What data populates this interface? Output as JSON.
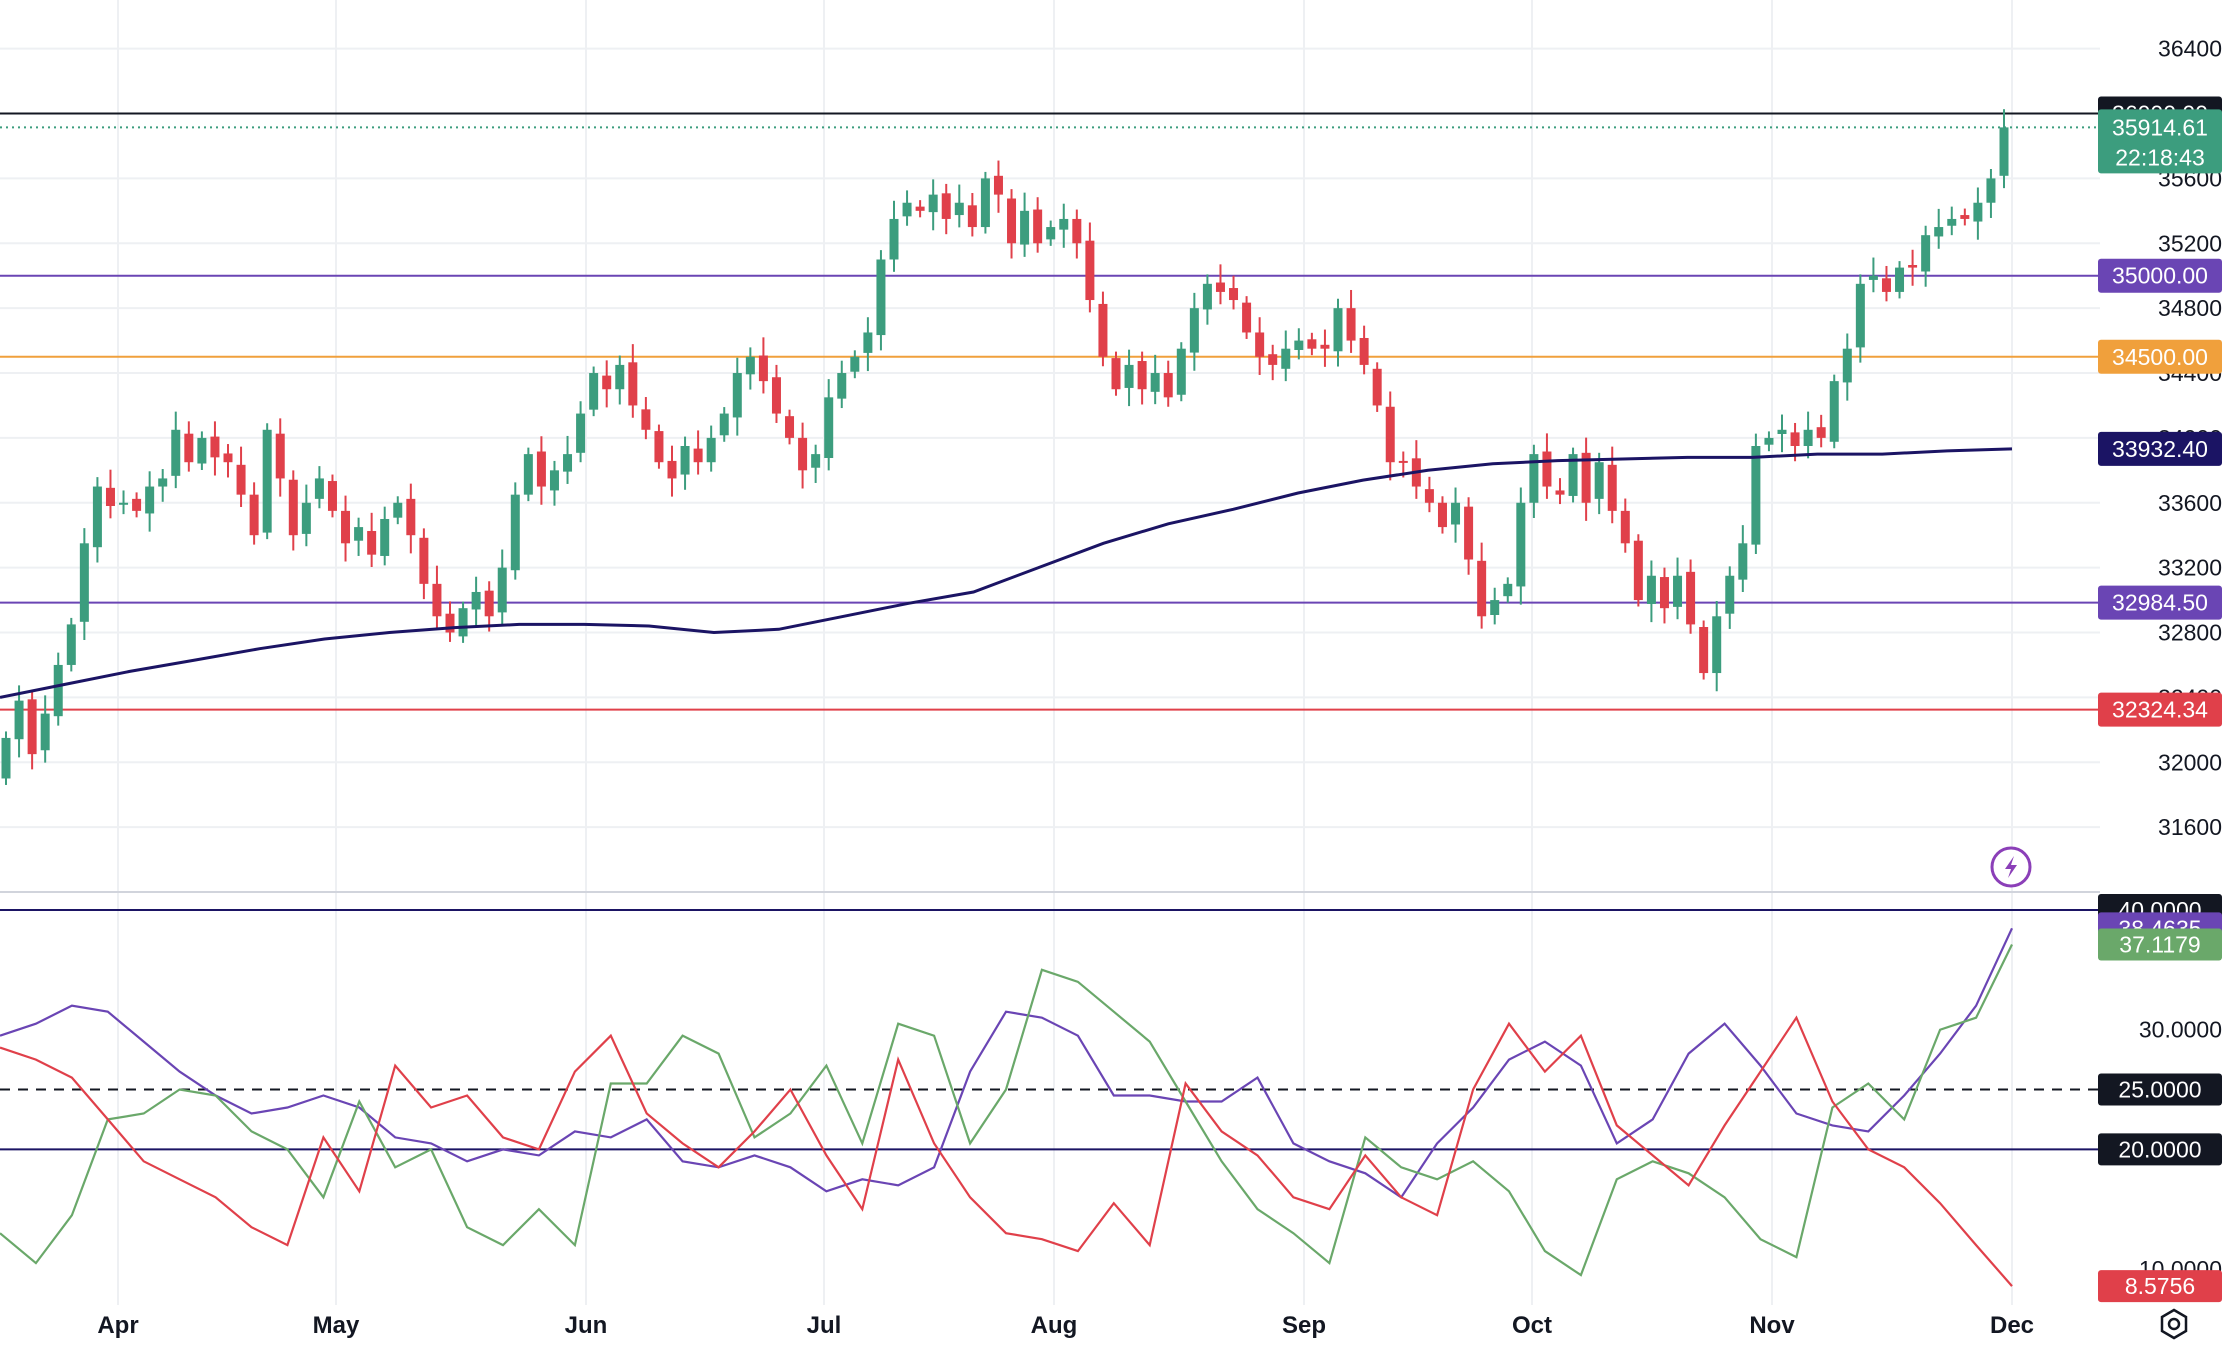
{
  "chart_data": [
    {
      "type": "candlestick",
      "title": "",
      "x_months": [
        "Apr",
        "May",
        "Jun",
        "Jul",
        "Aug",
        "Sep",
        "Oct",
        "Nov",
        "Dec"
      ],
      "y_ticks": [
        31600,
        32000,
        32400,
        32800,
        33200,
        33600,
        34000,
        34400,
        34800,
        35200,
        35600,
        36000,
        36400
      ],
      "ylim": [
        31200,
        36700
      ],
      "grid": true,
      "candle_up_color": "#3c9d7e",
      "candle_down_color": "#e0404a",
      "sma_color": "#1b1464",
      "closes": [
        32150,
        32380,
        32050,
        32300,
        32600,
        32850,
        33350,
        33700,
        33580,
        33600,
        33550,
        33700,
        33750,
        34050,
        33850,
        34000,
        33880,
        33850,
        33650,
        33400,
        34050,
        33750,
        33400,
        33600,
        33750,
        33550,
        33350,
        33450,
        33280,
        33500,
        33600,
        33400,
        33100,
        32900,
        32800,
        32950,
        33050,
        32900,
        33200,
        33650,
        33900,
        33700,
        33800,
        33900,
        34150,
        34400,
        34300,
        34450,
        34200,
        34050,
        33850,
        33750,
        33950,
        33850,
        34000,
        34150,
        34400,
        34500,
        34350,
        34150,
        34000,
        33800,
        33900,
        34250,
        34400,
        34500,
        34650,
        35100,
        35350,
        35450,
        35400,
        35500,
        35350,
        35450,
        35300,
        35600,
        35500,
        35200,
        35400,
        35200,
        35300,
        35350,
        35200,
        34850,
        34500,
        34300,
        34450,
        34300,
        34400,
        34250,
        34550,
        34800,
        34950,
        34900,
        34850,
        34650,
        34500,
        34450,
        34550,
        34600,
        34550,
        34550,
        34800,
        34600,
        34450,
        34200,
        33850,
        33850,
        33700,
        33600,
        33450,
        33600,
        33250,
        32900,
        33000,
        33100,
        33600,
        33900,
        33700,
        33650,
        33900,
        33600,
        33850,
        33550,
        33350,
        33000,
        33150,
        32950,
        33150,
        32850,
        32550,
        32900,
        33150,
        33350,
        33950,
        34000,
        34050,
        33950,
        34050,
        34000,
        34350,
        34550,
        34950,
        35000,
        34900,
        35050,
        35050,
        35250,
        35300,
        35350,
        35350,
        35450,
        35600,
        35914.61
      ],
      "sma200": [
        32400,
        32480,
        32560,
        32630,
        32700,
        32760,
        32800,
        32830,
        32850,
        32850,
        32840,
        32800,
        32820,
        32900,
        32980,
        33050,
        33200,
        33350,
        33470,
        33560,
        33660,
        33740,
        33800,
        33840,
        33860,
        33870,
        33880,
        33880,
        33900,
        33900,
        33920,
        33932.4
      ],
      "price_lines": [
        {
          "value": 36000.0,
          "label": "36000.00",
          "color": "#131722"
        },
        {
          "value": 35000.0,
          "label": "35000.00",
          "color": "#6a45b4"
        },
        {
          "value": 34500.0,
          "label": "34500.00",
          "color": "#f0a03c"
        },
        {
          "value": 32984.5,
          "label": "32984.50",
          "color": "#6a45b4"
        },
        {
          "value": 32324.34,
          "label": "32324.34",
          "color": "#e0404a"
        }
      ],
      "last_price": {
        "value": 35914.61,
        "label": "35914.61",
        "countdown": "22:18:43",
        "color": "#3c9d7e"
      },
      "sma_value": {
        "value": 33932.4,
        "label": "33932.40"
      }
    },
    {
      "type": "line",
      "title": "",
      "y_ticks": [
        "30.0000",
        "10.0000"
      ],
      "ylim": [
        7,
        41.5
      ],
      "level_lines": [
        {
          "value": 40,
          "label": "40.0000",
          "color": "#1b1464",
          "dashed": false
        },
        {
          "value": 25,
          "label": "25.0000",
          "color": "#131722",
          "dashed": true
        },
        {
          "value": 20,
          "label": "20.0000",
          "color": "#1b1464",
          "dashed": false
        }
      ],
      "series": [
        {
          "color": "#6a45b4",
          "last_label": "38.4635",
          "values": [
            29.5,
            30.5,
            32.0,
            31.5,
            29.0,
            26.5,
            24.5,
            23.0,
            23.5,
            24.5,
            23.5,
            21.0,
            20.5,
            19.0,
            20.0,
            19.5,
            21.5,
            21.0,
            22.5,
            19.0,
            18.5,
            19.5,
            18.5,
            16.5,
            17.5,
            17.0,
            18.5,
            26.5,
            31.5,
            31.0,
            29.5,
            24.5,
            24.5,
            24.0,
            24.0,
            26.0,
            20.5,
            19.0,
            18.0,
            16.0,
            20.5,
            23.5,
            27.5,
            29.0,
            27.0,
            20.5,
            22.5,
            28.0,
            30.5,
            27.0,
            23.0,
            22.0,
            21.5,
            24.5,
            28.0,
            32.0,
            38.4635
          ]
        },
        {
          "color": "#6aa86a",
          "last_label": "37.1179",
          "values": [
            13.0,
            10.5,
            14.5,
            22.5,
            23.0,
            25.0,
            24.5,
            21.5,
            20.0,
            16.0,
            24.0,
            18.5,
            20.0,
            13.5,
            12.0,
            15.0,
            12.0,
            25.5,
            25.5,
            29.5,
            28.0,
            21.0,
            23.0,
            27.0,
            20.5,
            30.5,
            29.5,
            20.5,
            25.0,
            35.0,
            34.0,
            31.5,
            29.0,
            24.0,
            19.0,
            15.0,
            13.0,
            10.5,
            21.0,
            18.5,
            17.5,
            19.0,
            16.5,
            11.5,
            9.5,
            17.5,
            19.0,
            18.0,
            16.0,
            12.5,
            11.0,
            23.5,
            25.5,
            22.5,
            30.0,
            31.0,
            37.1179
          ]
        },
        {
          "color": "#e0404a",
          "last_label": "8.5756",
          "values": [
            28.5,
            27.5,
            26.0,
            22.5,
            19.0,
            17.5,
            16.0,
            13.5,
            12.0,
            21.0,
            16.5,
            27.0,
            23.5,
            24.5,
            21.0,
            20.0,
            26.5,
            29.5,
            23.0,
            20.5,
            18.5,
            21.5,
            25.0,
            19.5,
            15.0,
            27.5,
            20.5,
            16.0,
            13.0,
            12.5,
            11.5,
            15.5,
            12.0,
            25.5,
            21.5,
            19.5,
            16.0,
            15.0,
            19.5,
            16.0,
            14.5,
            25.0,
            30.5,
            26.5,
            29.5,
            22.0,
            19.5,
            17.0,
            22.0,
            26.5,
            31.0,
            24.0,
            20.0,
            18.5,
            15.5,
            12.0,
            8.5756
          ]
        }
      ]
    }
  ]
}
